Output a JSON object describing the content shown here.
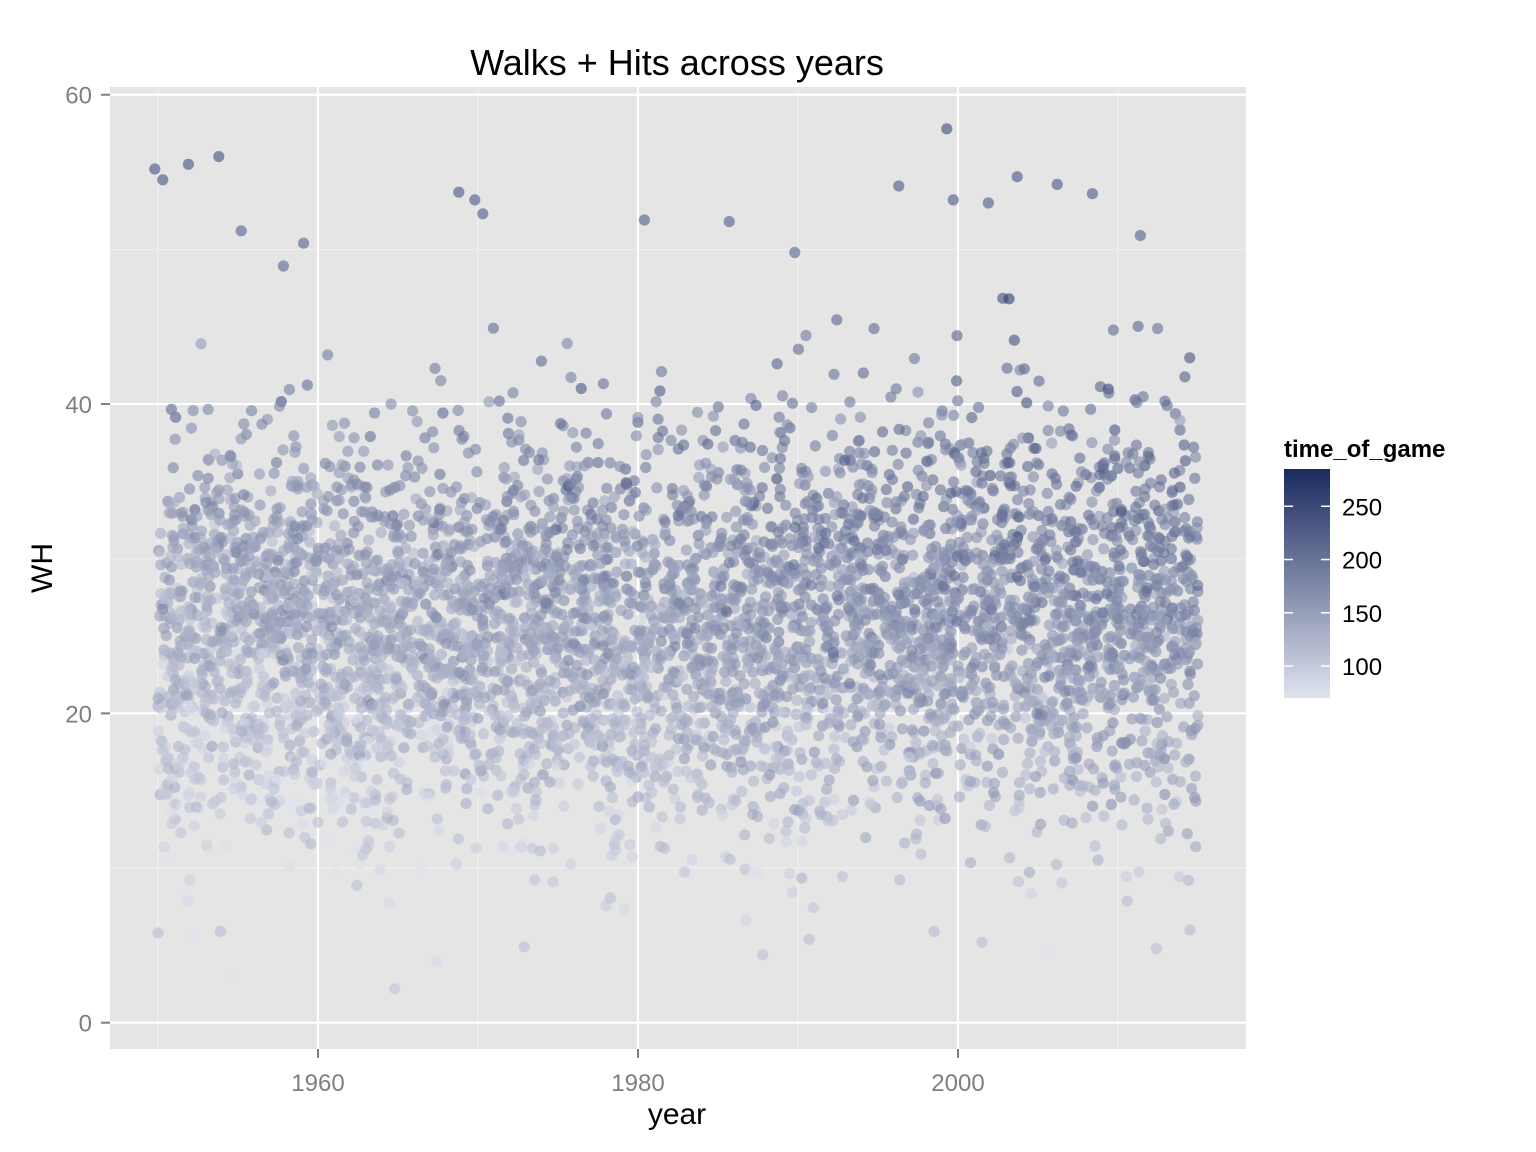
{
  "chart_data": {
    "type": "scatter",
    "title": "Walks + Hits across years",
    "xlabel": "year",
    "ylabel": "WH",
    "xlim": [
      1947,
      2018
    ],
    "ylim": [
      -1.7,
      60.5
    ],
    "x_ticks": [
      1960,
      1980,
      2000
    ],
    "y_ticks": [
      0,
      20,
      40,
      60
    ],
    "grid": true,
    "legend": {
      "title": "time_of_game",
      "position": "right",
      "range": [
        70,
        285
      ],
      "ticks": [
        100,
        150,
        200,
        250
      ],
      "color_low": "#e0e3ef",
      "color_high": "#1a2a5e"
    },
    "x_range": [
      1950,
      2015
    ],
    "y_core_range": [
      10,
      42
    ],
    "notable_points": [
      {
        "x": 1999.3,
        "y": 57.8
      },
      {
        "x": 1953.8,
        "y": 56.0
      },
      {
        "x": 1951.9,
        "y": 55.5
      },
      {
        "x": 1949.8,
        "y": 55.2
      },
      {
        "x": 2003.7,
        "y": 54.7
      },
      {
        "x": 1950.3,
        "y": 54.5
      },
      {
        "x": 1996.3,
        "y": 54.1
      },
      {
        "x": 2006.2,
        "y": 54.2
      },
      {
        "x": 1968.8,
        "y": 53.7
      },
      {
        "x": 2008.4,
        "y": 53.6
      },
      {
        "x": 1969.8,
        "y": 53.2
      },
      {
        "x": 1999.7,
        "y": 53.2
      },
      {
        "x": 2001.9,
        "y": 53.0
      },
      {
        "x": 1970.3,
        "y": 52.3
      },
      {
        "x": 1980.4,
        "y": 51.9
      },
      {
        "x": 1985.7,
        "y": 51.8
      },
      {
        "x": 1955.2,
        "y": 51.2
      },
      {
        "x": 2011.4,
        "y": 50.9
      },
      {
        "x": 1959.1,
        "y": 50.4
      },
      {
        "x": 1989.8,
        "y": 49.8
      },
      {
        "x": 1964.8,
        "y": 2.2
      },
      {
        "x": 1987.8,
        "y": 4.4
      },
      {
        "x": 2012.4,
        "y": 4.8
      },
      {
        "x": 1972.9,
        "y": 4.9
      },
      {
        "x": 1990.7,
        "y": 5.4
      },
      {
        "x": 2001.5,
        "y": 5.2
      },
      {
        "x": 1953.9,
        "y": 5.9
      },
      {
        "x": 2014.5,
        "y": 6.0
      },
      {
        "x": 1950.0,
        "y": 5.8
      },
      {
        "x": 1998.5,
        "y": 5.9
      }
    ]
  }
}
